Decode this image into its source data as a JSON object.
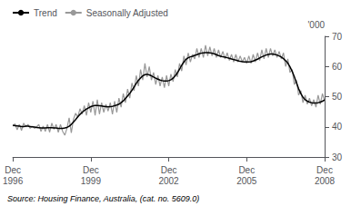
{
  "chart_data": {
    "type": "line",
    "ylabel": "'000",
    "annotations": [
      "Source: Housing Finance, Australia, (cat. no. 5609.0)"
    ],
    "categories": [
      "Dec\n1996",
      null,
      null,
      null,
      null,
      null,
      null,
      null,
      null,
      null,
      null,
      null,
      null,
      null,
      null,
      null,
      null,
      null,
      null,
      null,
      null,
      null,
      null,
      null,
      null,
      null,
      null,
      null,
      null,
      null,
      null,
      null,
      null,
      null,
      null,
      null,
      "Dec\n1999",
      null,
      null,
      null,
      null,
      null,
      null,
      null,
      null,
      null,
      null,
      null,
      null,
      null,
      null,
      null,
      null,
      null,
      null,
      null,
      null,
      null,
      null,
      null,
      null,
      null,
      null,
      null,
      null,
      null,
      null,
      null,
      null,
      null,
      null,
      null,
      "Dec\n2002",
      null,
      null,
      null,
      null,
      null,
      null,
      null,
      null,
      null,
      null,
      null,
      null,
      null,
      null,
      null,
      null,
      null,
      null,
      null,
      null,
      null,
      null,
      null,
      null,
      null,
      null,
      null,
      null,
      null,
      null,
      null,
      null,
      null,
      null,
      null,
      "Dec\n2005",
      null,
      null,
      null,
      null,
      null,
      null,
      null,
      null,
      null,
      null,
      null,
      null,
      null,
      null,
      null,
      null,
      null,
      null,
      null,
      null,
      null,
      null,
      null,
      null,
      null,
      null,
      null,
      null,
      null,
      null,
      null,
      null,
      null,
      null,
      null,
      "Dec\n2008"
    ],
    "series": [
      {
        "name": "Seasonally Adjusted",
        "color": "#999999",
        "values": [
          40.2,
          41.0,
          39.0,
          40.8,
          38.8,
          41.2,
          40.0,
          40.8,
          39.5,
          40.2,
          39.5,
          40.0,
          40.8,
          38.5,
          40.2,
          38.5,
          40.8,
          38.2,
          41.2,
          39.2,
          40.8,
          38.2,
          40.8,
          38.5,
          37.2,
          39.5,
          43.0,
          38.0,
          42.5,
          44.5,
          43.2,
          46.0,
          44.2,
          47.0,
          43.8,
          48.0,
          44.8,
          48.5,
          43.8,
          49.0,
          44.2,
          48.0,
          44.8,
          47.5,
          45.2,
          48.0,
          44.2,
          48.5,
          44.8,
          49.5,
          46.5,
          51.0,
          48.0,
          52.5,
          49.5,
          54.5,
          52.0,
          57.0,
          53.5,
          59.0,
          55.5,
          61.0,
          56.5,
          60.0,
          55.5,
          58.0,
          54.0,
          57.0,
          53.5,
          56.5,
          53.0,
          57.0,
          53.5,
          57.5,
          55.0,
          59.0,
          56.5,
          61.0,
          58.5,
          63.5,
          60.5,
          64.5,
          61.5,
          64.0,
          62.5,
          66.0,
          63.0,
          66.0,
          63.0,
          67.0,
          63.5,
          66.5,
          63.5,
          66.0,
          63.0,
          65.5,
          63.0,
          65.0,
          62.5,
          64.5,
          62.0,
          64.0,
          61.5,
          64.0,
          61.5,
          63.5,
          61.5,
          63.0,
          61.0,
          63.5,
          61.0,
          64.0,
          61.5,
          64.5,
          62.0,
          65.5,
          62.5,
          66.0,
          63.0,
          66.0,
          63.5,
          65.5,
          63.0,
          65.0,
          62.5,
          64.5,
          60.0,
          62.5,
          58.0,
          59.0,
          54.0,
          55.5,
          50.5,
          52.0,
          48.0,
          50.5,
          47.5,
          49.5,
          47.0,
          49.0,
          46.5,
          50.5,
          47.5,
          51.0,
          48.5
        ]
      },
      {
        "name": "Trend",
        "color": "#000000",
        "values": [
          40.5,
          40.4,
          40.3,
          40.2,
          40.1,
          40.1,
          40.2,
          40.2,
          40.1,
          40.0,
          39.9,
          39.8,
          39.7,
          39.6,
          39.6,
          39.6,
          39.7,
          39.7,
          39.7,
          39.6,
          39.6,
          39.5,
          39.5,
          39.5,
          39.6,
          39.8,
          40.2,
          40.8,
          41.6,
          42.4,
          43.3,
          44.1,
          44.8,
          45.4,
          45.9,
          46.3,
          46.7,
          46.9,
          47.1,
          47.1,
          47.0,
          46.9,
          46.8,
          46.7,
          46.6,
          46.7,
          46.8,
          47.0,
          47.2,
          47.5,
          48.0,
          48.6,
          49.4,
          50.2,
          51.1,
          52.1,
          53.2,
          54.4,
          55.4,
          56.2,
          56.9,
          57.3,
          57.4,
          57.2,
          56.9,
          56.5,
          56.1,
          55.8,
          55.5,
          55.3,
          55.2,
          55.2,
          55.3,
          55.6,
          56.1,
          56.9,
          57.9,
          59.1,
          60.4,
          61.5,
          62.4,
          62.9,
          63.2,
          63.4,
          63.7,
          63.9,
          64.2,
          64.4,
          64.5,
          64.6,
          64.6,
          64.5,
          64.4,
          64.2,
          63.9,
          63.6,
          63.4,
          63.2,
          63.1,
          62.9,
          62.7,
          62.5,
          62.3,
          62.1,
          61.9,
          61.7,
          61.6,
          61.5,
          61.5,
          61.5,
          61.6,
          61.8,
          62.1,
          62.4,
          62.8,
          63.2,
          63.5,
          63.8,
          64.0,
          64.1,
          64.1,
          64.0,
          63.8,
          63.5,
          63.1,
          62.6,
          61.9,
          61.1,
          59.9,
          58.4,
          56.6,
          54.6,
          52.6,
          51.0,
          49.8,
          49.0,
          48.5,
          48.2,
          48.0,
          47.9,
          47.9,
          48.0,
          48.2,
          48.5,
          48.9
        ]
      }
    ],
    "ylim": [
      30,
      70
    ],
    "yticks": [
      30,
      40,
      50,
      60,
      70
    ],
    "grid": false,
    "legend": "upper left"
  }
}
